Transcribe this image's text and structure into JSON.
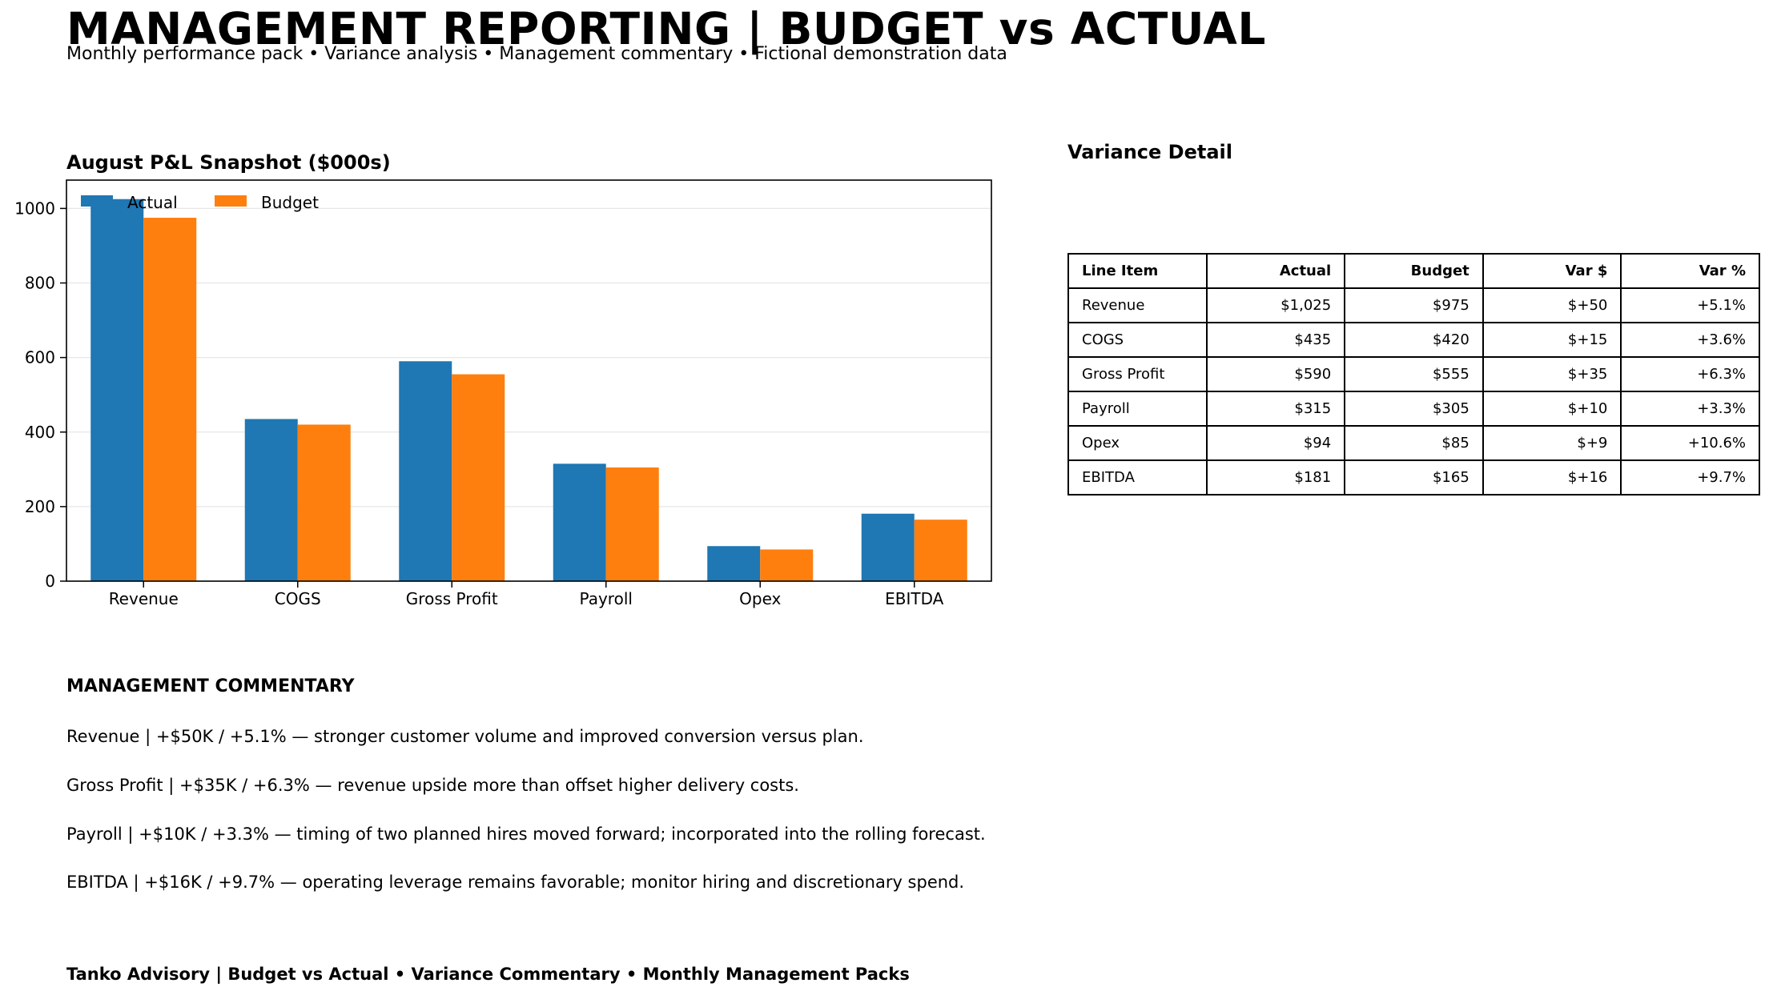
{
  "header": {
    "title": "MANAGEMENT REPORTING | BUDGET vs ACTUAL",
    "subtitle": "Monthly performance pack  •  Variance analysis  •  Management commentary  •  Fictional demonstration data"
  },
  "chart_data": {
    "type": "bar",
    "title": "August P&L Snapshot ($000s)",
    "categories": [
      "Revenue",
      "COGS",
      "Gross Profit",
      "Payroll",
      "Opex",
      "EBITDA"
    ],
    "series": [
      {
        "name": "Actual",
        "values": [
          1025,
          435,
          590,
          315,
          94,
          181
        ],
        "color": "#1f77b4"
      },
      {
        "name": "Budget",
        "values": [
          975,
          420,
          555,
          305,
          85,
          165
        ],
        "color": "#ff7f0e"
      }
    ],
    "yticks": [
      0,
      200,
      400,
      600,
      800,
      1000
    ],
    "ylim": [
      0,
      1076
    ],
    "xlabel": "",
    "ylabel": "",
    "grid": "y",
    "legend": "top-left"
  },
  "variance_table": {
    "title": "Variance Detail",
    "headers": [
      "Line Item",
      "Actual",
      "Budget",
      "Var $",
      "Var %"
    ],
    "rows": [
      [
        "Revenue",
        "$1,025",
        "$975",
        "$+50",
        "+5.1%"
      ],
      [
        "COGS",
        "$435",
        "$420",
        "$+15",
        "+3.6%"
      ],
      [
        "Gross Profit",
        "$590",
        "$555",
        "$+35",
        "+6.3%"
      ],
      [
        "Payroll",
        "$315",
        "$305",
        "$+10",
        "+3.3%"
      ],
      [
        "Opex",
        "$94",
        "$85",
        "$+9",
        "+10.6%"
      ],
      [
        "EBITDA",
        "$181",
        "$165",
        "$+16",
        "+9.7%"
      ]
    ]
  },
  "commentary": {
    "heading": "MANAGEMENT COMMENTARY",
    "items": [
      "Revenue  |  +$50K / +5.1% — stronger customer volume and improved conversion versus plan.",
      "Gross Profit  |  +$35K / +6.3% — revenue upside more than offset higher delivery costs.",
      "Payroll  |  +$10K / +3.3% — timing of two planned hires moved forward; incorporated into the rolling forecast.",
      "EBITDA  |  +$16K / +9.7% — operating leverage remains favorable; monitor hiring and discretionary spend."
    ]
  },
  "footer": {
    "text": "Tanko Advisory  |  Budget vs Actual • Variance Commentary • Monthly Management Packs"
  }
}
